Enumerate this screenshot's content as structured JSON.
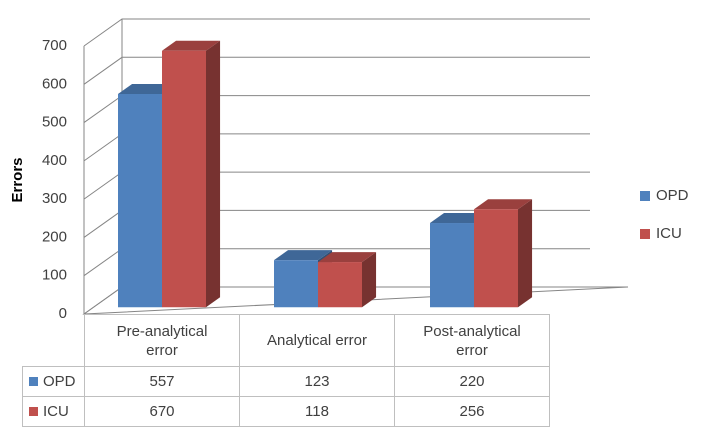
{
  "chart_data": {
    "type": "bar3d",
    "y_label": "Errors",
    "categories": [
      "Pre-analytical error",
      "Analytical error",
      "Post-analytical error"
    ],
    "series": [
      {
        "name": "OPD",
        "color": "#4f81bd",
        "values": [
          557,
          123,
          220
        ]
      },
      {
        "name": "ICU",
        "color": "#c0504d",
        "values": [
          670,
          118,
          256
        ]
      }
    ],
    "ylim": [
      0,
      700
    ],
    "yticks": [
      0,
      100,
      200,
      300,
      400,
      500,
      600,
      700
    ],
    "grid": true,
    "legend": "right"
  }
}
